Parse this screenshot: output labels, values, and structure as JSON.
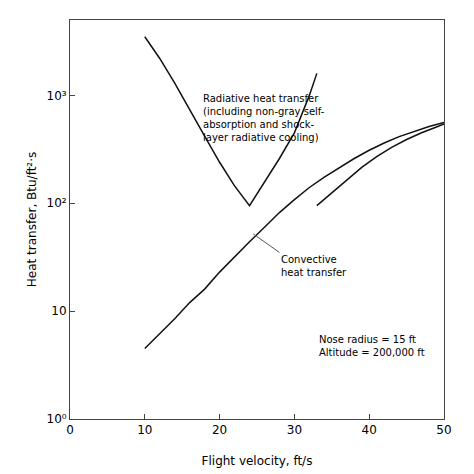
{
  "chart_data": {
    "type": "line",
    "log": "y",
    "grid": false,
    "xlabel": "Flight velocity, ft/s",
    "ylabel": "Heat transfer, Btu/ft²·s",
    "xlim": [
      0,
      50
    ],
    "ylim": [
      1,
      5000
    ],
    "xticks": [
      0,
      10,
      20,
      30,
      40,
      50
    ],
    "yticks": [
      {
        "value": 1,
        "label": "10⁰"
      },
      10,
      {
        "value": 100,
        "label": "10²"
      },
      {
        "value": 1000,
        "label": "10³"
      }
    ],
    "series": [
      {
        "x": [
          10,
          12,
          14,
          16,
          18,
          20,
          22,
          24,
          26,
          28,
          30,
          32,
          34,
          36,
          38,
          40,
          42,
          44,
          46,
          48,
          50
        ],
        "values": [
          4.5,
          6.2,
          8.5,
          12,
          16,
          23,
          32,
          44,
          60,
          82,
          108,
          140,
          175,
          215,
          260,
          310,
          362,
          415,
          465,
          515,
          560
        ],
        "color": "#111111"
      },
      {
        "x": [
          10,
          12,
          14,
          16,
          18,
          20,
          22,
          24,
          26,
          28,
          30,
          32,
          33.0
        ],
        "values": [
          3500,
          2200,
          1300,
          750,
          420,
          240,
          145,
          95,
          155,
          260,
          450,
          1000,
          1600
        ],
        "color": "#111111"
      },
      {
        "x": [
          33.0,
          35,
          37,
          39,
          41,
          43,
          45,
          47,
          49,
          50
        ],
        "values": [
          95,
          125,
          165,
          215,
          270,
          330,
          390,
          450,
          510,
          545
        ],
        "color": "#111111"
      }
    ],
    "annotations": [
      {
        "text": "Radiative heat transfer\n(including non-gray self-\nabsorption and shock-\nlayer radiative cooling)",
        "x": 31.5,
        "y": 900,
        "text_x": 17.5,
        "text_y": 1100,
        "color": "#555555"
      },
      {
        "text": "Convective\nheat transfer",
        "x": 24.5,
        "y": 52,
        "text_x": 28,
        "text_y": 35,
        "color": "#555555"
      },
      {
        "text": "Nose radius = 15 ft\nAltitude = 200,000 ft",
        "x": 33,
        "y": 3.5
      }
    ]
  }
}
